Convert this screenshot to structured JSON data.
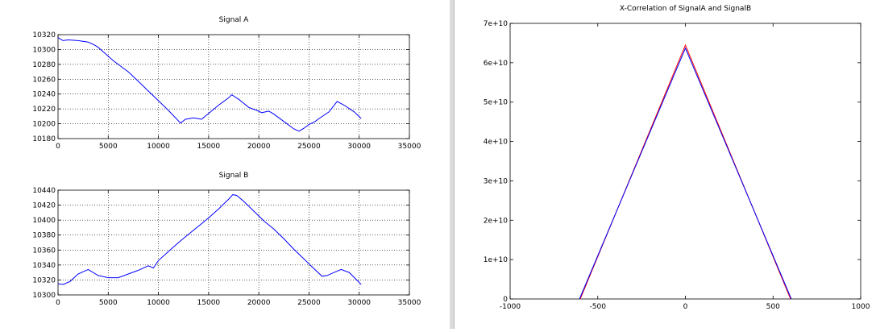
{
  "window": {
    "divider_color": "#dcdcdc"
  },
  "chart_data": [
    {
      "id": "signal-a",
      "type": "line",
      "title": "Signal A",
      "xlabel": "",
      "ylabel": "",
      "xlim": [
        0,
        35000
      ],
      "ylim": [
        10180,
        10320
      ],
      "xticks": [
        0,
        5000,
        10000,
        15000,
        20000,
        25000,
        30000,
        35000
      ],
      "yticks": [
        10180,
        10200,
        10220,
        10240,
        10260,
        10280,
        10300,
        10320
      ],
      "grid": true,
      "series": [
        {
          "color": "#0000ff",
          "x": [
            0,
            500,
            1000,
            2000,
            3000,
            3500,
            4000,
            4500,
            5000,
            5500,
            6000,
            7000,
            8000,
            9000,
            10000,
            11000,
            12200,
            12700,
            13500,
            14300,
            15000,
            16000,
            17000,
            17300,
            18000,
            19000,
            19800,
            20300,
            21000,
            21500,
            22500,
            23500,
            24000,
            24500,
            25000,
            25600,
            26000,
            27000,
            27800,
            28500,
            29500,
            30200
          ],
          "y": [
            10316,
            10312,
            10313,
            10312,
            10310,
            10307,
            10303,
            10297,
            10291,
            10285,
            10280,
            10270,
            10257,
            10244,
            10231,
            10218,
            10201,
            10206,
            10208,
            10206,
            10214,
            10225,
            10235,
            10239,
            10233,
            10222,
            10218,
            10215,
            10217,
            10213,
            10203,
            10193,
            10190,
            10194,
            10199,
            10203,
            10207,
            10216,
            10230,
            10225,
            10216,
            10207
          ]
        }
      ]
    },
    {
      "id": "signal-b",
      "type": "line",
      "title": "Signal B",
      "xlabel": "",
      "ylabel": "",
      "xlim": [
        0,
        35000
      ],
      "ylim": [
        10300,
        10440
      ],
      "xticks": [
        0,
        5000,
        10000,
        15000,
        20000,
        25000,
        30000,
        35000
      ],
      "yticks": [
        10300,
        10320,
        10340,
        10360,
        10380,
        10400,
        10420,
        10440
      ],
      "grid": true,
      "series": [
        {
          "color": "#0000ff",
          "x": [
            0,
            500,
            1200,
            2000,
            3000,
            4000,
            5000,
            6000,
            7000,
            8000,
            9000,
            9500,
            10000,
            11000,
            12000,
            13000,
            14000,
            15000,
            16000,
            17000,
            17400,
            17800,
            18500,
            19500,
            20500,
            21500,
            22500,
            23500,
            24500,
            25500,
            26300,
            26800,
            27500,
            28200,
            29000,
            30200
          ],
          "y": [
            10315,
            10314,
            10318,
            10328,
            10334,
            10326,
            10323,
            10323,
            10328,
            10333,
            10339,
            10336,
            10346,
            10358,
            10370,
            10381,
            10392,
            10403,
            10415,
            10428,
            10434,
            10433,
            10425,
            10412,
            10399,
            10388,
            10375,
            10361,
            10348,
            10335,
            10325,
            10326,
            10330,
            10334,
            10330,
            10314
          ]
        }
      ]
    },
    {
      "id": "xcorr",
      "type": "line",
      "title": "X-Correlation of SignalA and SignalB",
      "xlabel": "",
      "ylabel": "",
      "xlim": [
        -1000,
        1000
      ],
      "ylim": [
        0,
        70000000000
      ],
      "xticks": [
        -1000,
        -500,
        0,
        500,
        1000
      ],
      "xtick_labels": [
        "-1000",
        "-500",
        "0",
        "500",
        "1000"
      ],
      "yticks": [
        0,
        10000000000,
        20000000000,
        30000000000,
        40000000000,
        50000000000,
        60000000000,
        70000000000
      ],
      "ytick_labels": [
        "0",
        "1e+10",
        "2e+10",
        "3e+10",
        "4e+10",
        "5e+10",
        "6e+10",
        "7e+10"
      ],
      "grid": false,
      "series": [
        {
          "color": "#ff0000",
          "x": [
            -600,
            0,
            600
          ],
          "y": [
            0,
            64500000000,
            0
          ]
        },
        {
          "color": "#0000ff",
          "x": [
            -604,
            0,
            604
          ],
          "y": [
            0,
            63700000000,
            0
          ]
        }
      ]
    }
  ]
}
